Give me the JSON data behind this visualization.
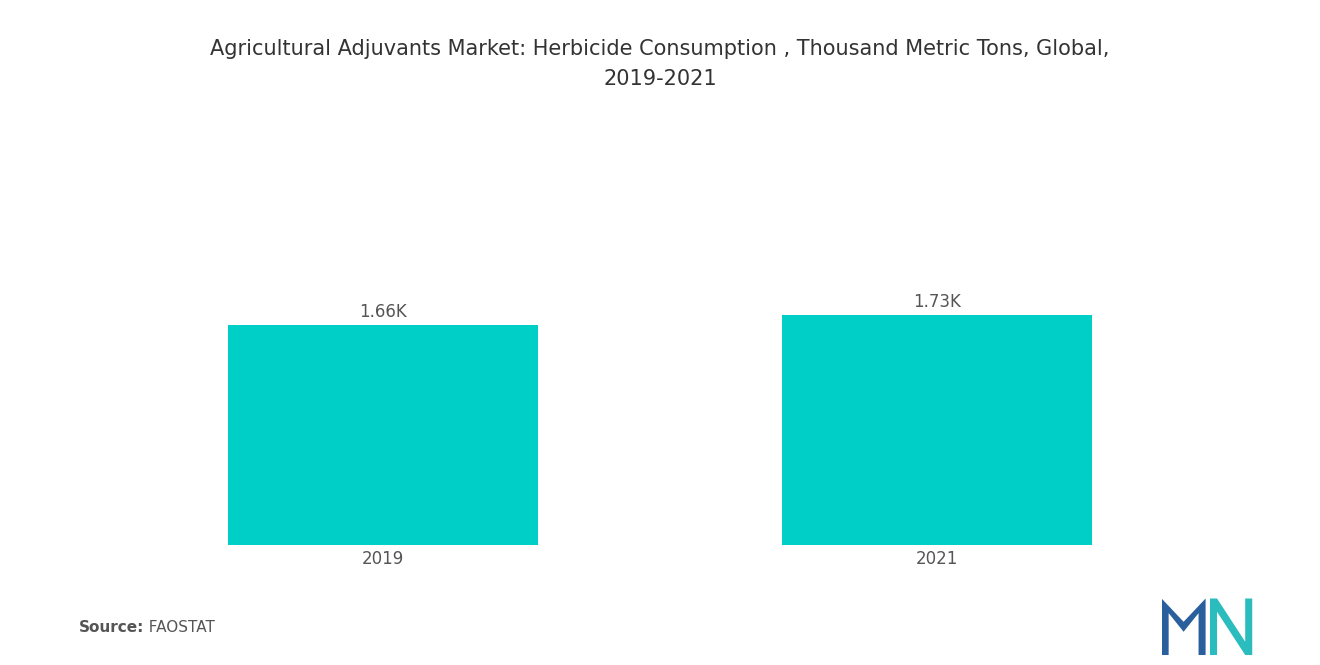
{
  "title": "Agricultural Adjuvants Market: Herbicide Consumption , Thousand Metric Tons, Global,\n2019-2021",
  "categories": [
    "2019",
    "2021"
  ],
  "values": [
    1660,
    1730
  ],
  "labels": [
    "1.66K",
    "1.73K"
  ],
  "bar_color": "#00CFC8",
  "background_color": "#ffffff",
  "source_bold": "Source:",
  "source_normal": "  FAOSTAT",
  "title_fontsize": 15,
  "label_fontsize": 12,
  "tick_fontsize": 12,
  "source_fontsize": 11,
  "ylim": [
    0,
    3200
  ],
  "bar_width": 0.28,
  "x_positions": [
    0.25,
    0.75
  ]
}
